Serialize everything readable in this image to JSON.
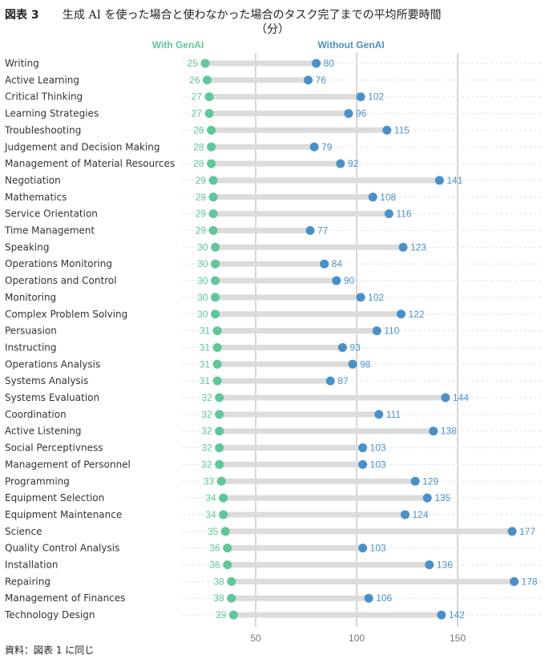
{
  "figure": {
    "label": "図表 3",
    "title": "生成 AI を使った場合と使わなかった場合のタスク完了までの平均所要時間",
    "subtitle": "（分）",
    "source": "資料：図表 1 に同じ"
  },
  "colors": {
    "with": "#5fc79a",
    "without": "#4a90c8",
    "bar": "#dcdcdc",
    "grid": "#c8c8c8"
  },
  "chart_data": {
    "type": "dumbbell",
    "title": "生成 AI を使った場合と使わなかった場合のタスク完了までの平均所要時間",
    "subtitle": "（分）",
    "xlabel": "",
    "ylabel": "",
    "xlim": [
      10,
      180
    ],
    "xticks": [
      50,
      100,
      150
    ],
    "grid": true,
    "legend": "top",
    "categories": [
      "Writing",
      "Active Learning",
      "Critical Thinking",
      "Learning Strategies",
      "Troubleshooting",
      "Judgement and Decision Making",
      "Management of Material Resources",
      "Negotiation",
      "Mathematics",
      "Service Orientation",
      "Time Management",
      "Speaking",
      "Operations Monitoring",
      "Operations and Control",
      "Monitoring",
      "Complex Problem Solving",
      "Persuasion",
      "Instructing",
      "Operations Analysis",
      "Systems Analysis",
      "Systems Evaluation",
      "Coordination",
      "Active Listening",
      "Social Perceptivness",
      "Management of Personnel",
      "Programming",
      "Equipment Selection",
      "Equipment Maintenance",
      "Science",
      "Quality Control Analysis",
      "Installation",
      "Repairing",
      "Management of Finances",
      "Technology Design"
    ],
    "series": [
      {
        "name": "With GenAI",
        "values": [
          25,
          26,
          27,
          27,
          28,
          28,
          28,
          29,
          29,
          29,
          29,
          30,
          30,
          30,
          30,
          30,
          31,
          31,
          31,
          31,
          32,
          32,
          32,
          32,
          32,
          33,
          34,
          34,
          35,
          36,
          36,
          38,
          38,
          39
        ]
      },
      {
        "name": "Without GenAI",
        "values": [
          80,
          76,
          102,
          96,
          115,
          79,
          92,
          141,
          108,
          116,
          77,
          123,
          84,
          90,
          102,
          122,
          110,
          93,
          98,
          87,
          144,
          111,
          138,
          103,
          103,
          129,
          135,
          124,
          177,
          103,
          136,
          178,
          106,
          142
        ]
      }
    ]
  }
}
